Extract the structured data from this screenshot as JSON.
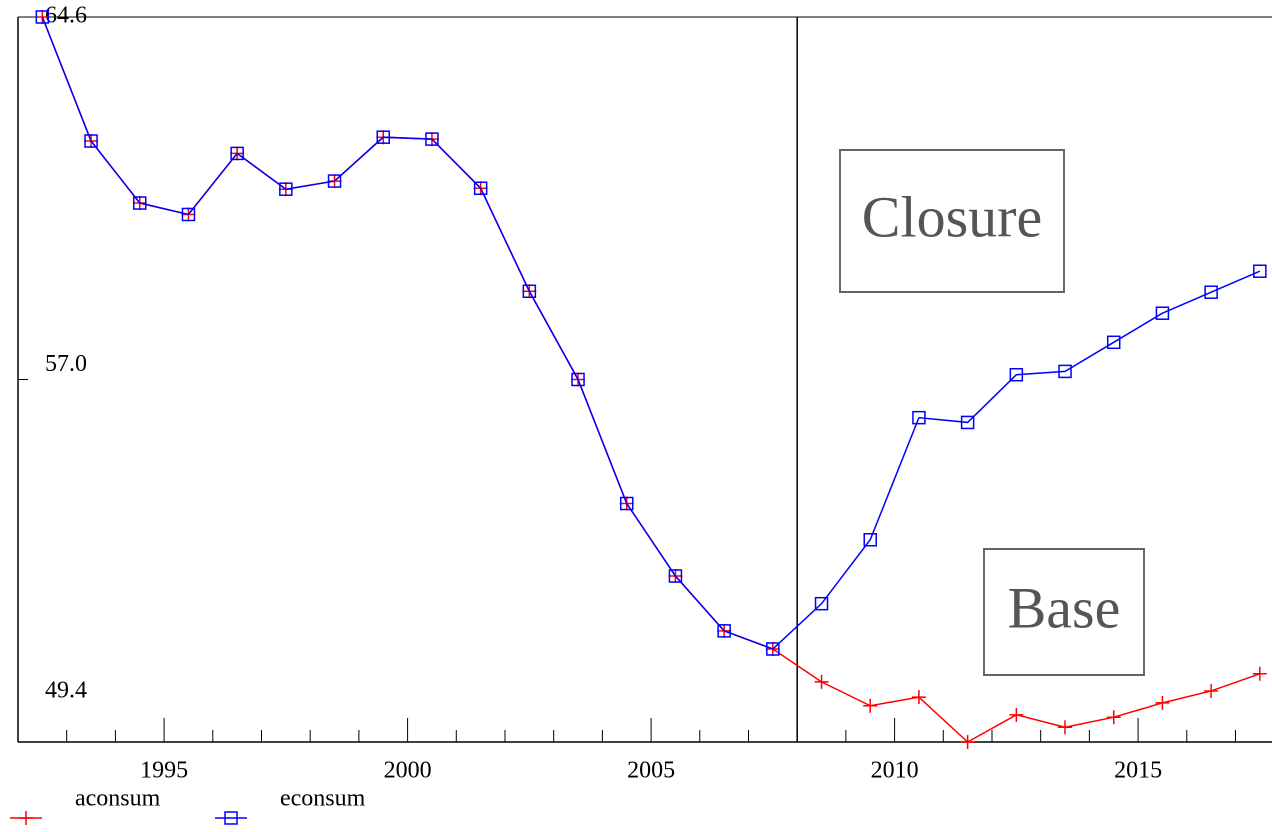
{
  "chart_data": {
    "type": "line",
    "x": [
      1992.5,
      1993.5,
      1994.5,
      1995.5,
      1996.5,
      1997.5,
      1998.5,
      1999.5,
      2000.5,
      2001.5,
      2002.5,
      2003.5,
      2004.5,
      2005.5,
      2006.5,
      2007.5,
      2008.5,
      2009.5,
      2010.5,
      2011.5,
      2012.5,
      2013.5,
      2014.5,
      2015.5,
      2016.5,
      2017.5
    ],
    "series": [
      {
        "name": "aconsum",
        "color": "#ff0000",
        "marker": "plus",
        "values": [
          64.6,
          62.0,
          60.7,
          60.46,
          61.74,
          60.99,
          61.16,
          62.08,
          62.04,
          61.01,
          58.85,
          57.0,
          54.4,
          52.88,
          51.73,
          51.35,
          50.66,
          50.16,
          50.34,
          49.4,
          49.97,
          49.71,
          49.92,
          50.22,
          50.47,
          50.83
        ]
      },
      {
        "name": "econsum",
        "color": "#0000ff",
        "marker": "square",
        "values": [
          64.6,
          62.0,
          60.7,
          60.46,
          61.74,
          60.99,
          61.16,
          62.08,
          62.04,
          61.01,
          58.85,
          57.0,
          54.4,
          52.88,
          51.73,
          51.35,
          52.3,
          53.64,
          56.2,
          56.1,
          57.1,
          57.17,
          57.78,
          58.39,
          58.83,
          59.27
        ]
      }
    ],
    "xlim": [
      1992,
      2017.75
    ],
    "xticks": [
      1995,
      2000,
      2005,
      2010,
      2015
    ],
    "xminorticks": [
      1993,
      1994,
      1996,
      1997,
      1998,
      1999,
      2001,
      2002,
      2003,
      2004,
      2006,
      2007,
      2008,
      2009,
      2011,
      2012,
      2013,
      2014,
      2016,
      2017
    ],
    "ylim": [
      49.4,
      64.6
    ],
    "yticks": [
      {
        "value": 49.4,
        "label": "49.4"
      },
      {
        "value": 57,
        "label": "57.0"
      },
      {
        "value": 64.6,
        "label": "64.6"
      }
    ],
    "vline": 2008,
    "annotations": [
      "Closure",
      "Base"
    ]
  }
}
